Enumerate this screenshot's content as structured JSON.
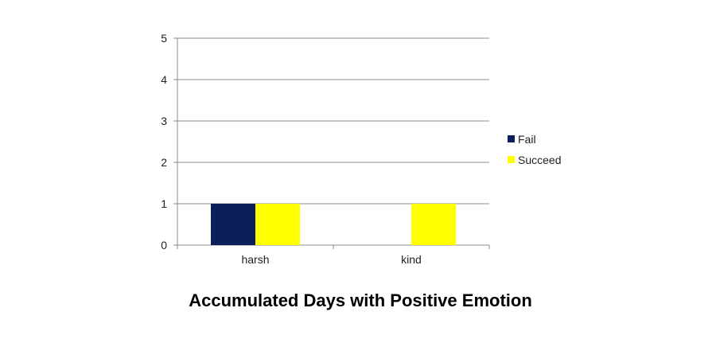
{
  "chart_data": {
    "type": "bar",
    "title": "Accumulated Days with Positive Emotion",
    "categories": [
      "harsh",
      "kind"
    ],
    "series": [
      {
        "name": "Fail",
        "values": [
          1,
          0
        ],
        "color": "#0a1f5c"
      },
      {
        "name": "Succeed",
        "values": [
          1,
          1
        ],
        "color": "#ffff00"
      }
    ],
    "xlabel": "",
    "ylabel": "",
    "ylim": [
      0,
      5
    ],
    "yticks": [
      0,
      1,
      2,
      3,
      4,
      5
    ],
    "grid": true,
    "legend": "right"
  }
}
